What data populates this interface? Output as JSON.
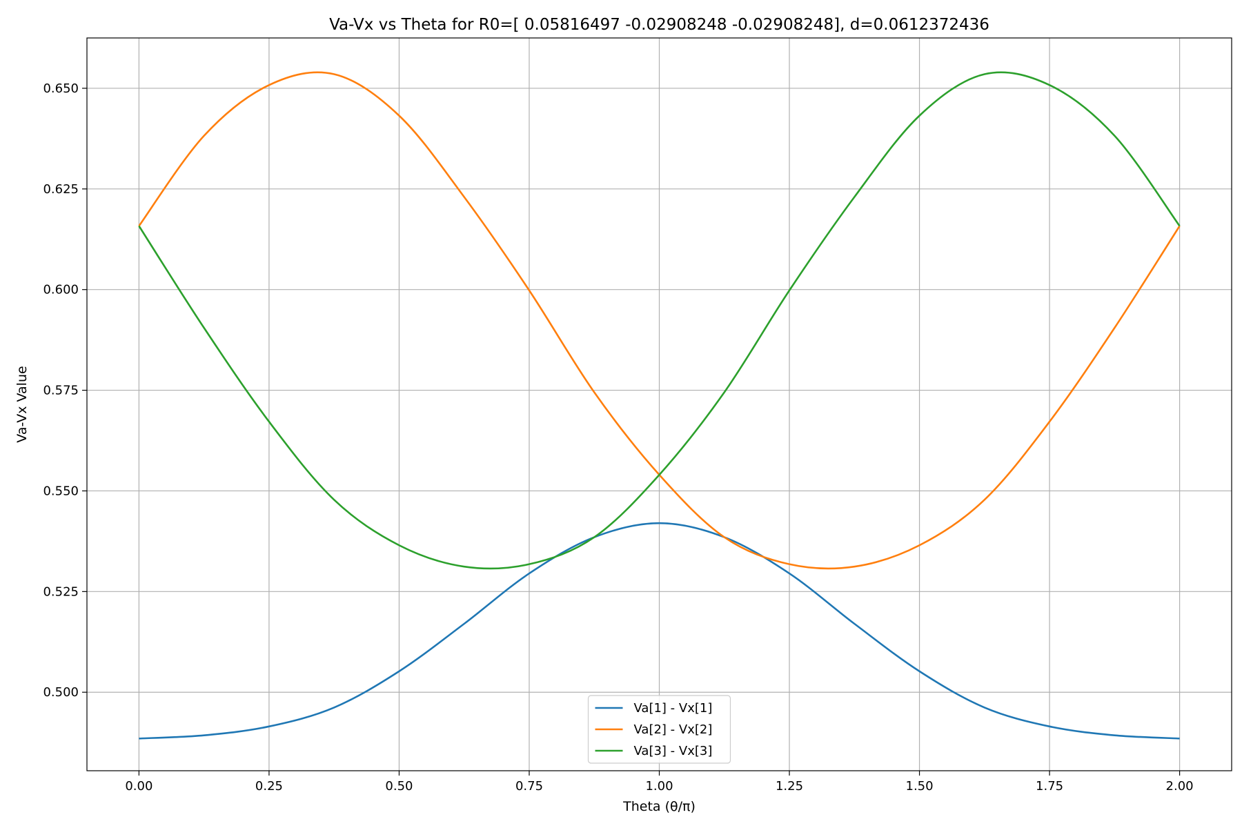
{
  "chart_data": {
    "type": "line",
    "title": "Va-Vx vs Theta for R0=[ 0.05816497 -0.02908248 -0.02908248], d=0.0612372436",
    "xlabel": "Theta (θ/π)",
    "ylabel": "Va-Vx Value",
    "xlim": [
      -0.1,
      2.1
    ],
    "ylim": [
      0.4805,
      0.6625
    ],
    "xticks": [
      0.0,
      0.25,
      0.5,
      0.75,
      1.0,
      1.25,
      1.5,
      1.75,
      2.0
    ],
    "xtick_labels": [
      "0.00",
      "0.25",
      "0.50",
      "0.75",
      "1.00",
      "1.25",
      "1.50",
      "1.75",
      "2.00"
    ],
    "yticks": [
      0.5,
      0.525,
      0.55,
      0.575,
      0.6,
      0.625,
      0.65
    ],
    "ytick_labels": [
      "0.500",
      "0.525",
      "0.550",
      "0.575",
      "0.600",
      "0.625",
      "0.650"
    ],
    "grid": true,
    "legend_position": "bottom-center",
    "x": [
      0.0,
      0.125,
      0.25,
      0.375,
      0.5,
      0.625,
      0.75,
      0.875,
      1.0,
      1.125,
      1.25,
      1.375,
      1.5,
      1.625,
      1.75,
      1.875,
      2.0
    ],
    "series": [
      {
        "name": "Va[1] - Vx[1]",
        "color": "#1f77b4",
        "values": [
          0.4885,
          0.4893,
          0.4915,
          0.4962,
          0.5052,
          0.517,
          0.5295,
          0.5385,
          0.542,
          0.5385,
          0.5295,
          0.517,
          0.5052,
          0.4962,
          0.4915,
          0.4893,
          0.4885
        ]
      },
      {
        "name": "Va[2] - Vx[2]",
        "color": "#ff7f0e",
        "values": [
          0.6158,
          0.6382,
          0.6508,
          0.6535,
          0.6432,
          0.623,
          0.5998,
          0.5745,
          0.554,
          0.5385,
          0.5318,
          0.5312,
          0.5365,
          0.5478,
          0.5672,
          0.5905,
          0.6158
        ]
      },
      {
        "name": "Va[3] - Vx[3]",
        "color": "#2ca02c",
        "values": [
          0.6158,
          0.5905,
          0.5672,
          0.5478,
          0.5365,
          0.5312,
          0.5318,
          0.5385,
          0.554,
          0.5745,
          0.5998,
          0.623,
          0.6432,
          0.6535,
          0.6508,
          0.6382,
          0.6158
        ]
      }
    ]
  }
}
